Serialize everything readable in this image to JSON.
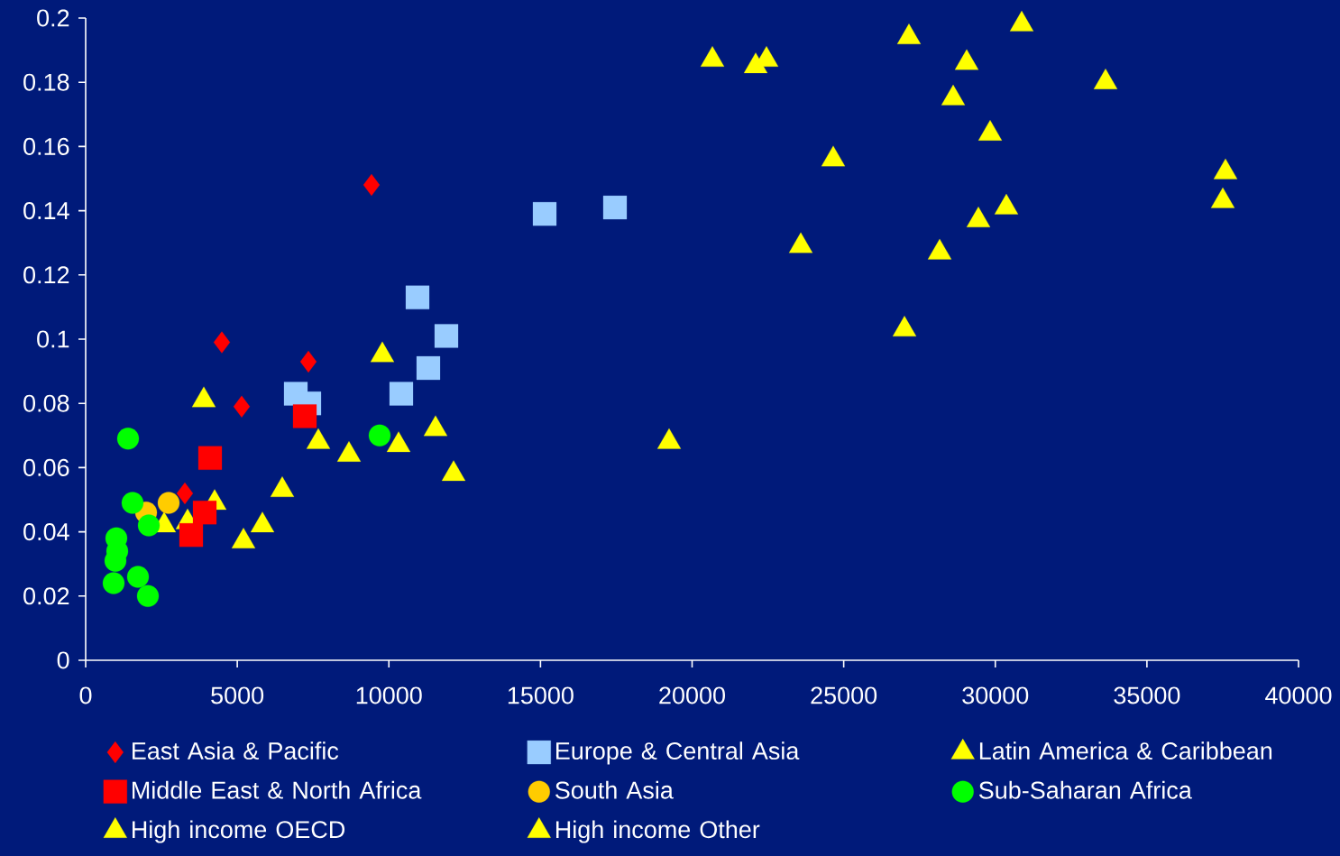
{
  "chart_data": {
    "type": "scatter",
    "xlim": [
      0,
      40000
    ],
    "xticks": [
      0,
      5000,
      10000,
      15000,
      20000,
      25000,
      30000,
      35000,
      40000
    ],
    "ylim": [
      0,
      0.2
    ],
    "yticks": [
      0,
      0.02,
      0.04,
      0.06,
      0.08,
      0.1,
      0.12,
      0.14,
      0.16,
      0.18,
      0.2
    ],
    "grid": false,
    "legend": "bottom",
    "series": [
      {
        "name": "East Asia & Pacific",
        "color": "#ff0000",
        "marker": "diamond",
        "x": [
          9427,
          4491,
          7346,
          5145,
          3271
        ],
        "values": [
          0.148,
          0.099,
          0.093,
          0.079,
          0.052
        ]
      },
      {
        "name": "Europe & Central Asia",
        "color": "#99ccff",
        "marker": "square",
        "x": [
          15137,
          17457,
          10944,
          11896,
          11301,
          10409,
          6929,
          7375
        ],
        "values": [
          0.139,
          0.141,
          0.113,
          0.101,
          0.091,
          0.083,
          0.083,
          0.08
        ]
      },
      {
        "name": "Latin America & Caribbean",
        "color": "#ffff00",
        "marker": "triangle",
        "x": [
          9784,
          3896,
          7673,
          8684,
          10320,
          11539,
          12134,
          6483,
          5829,
          5204,
          4253,
          2587,
          3361
        ],
        "values": [
          0.095,
          0.081,
          0.068,
          0.064,
          0.067,
          0.072,
          0.058,
          0.053,
          0.042,
          0.037,
          0.049,
          0.042,
          0.043
        ]
      },
      {
        "name": "Middle East & North Africa",
        "color": "#ff0000",
        "marker": "square",
        "x": [
          4104,
          7227,
          3926,
          3480
        ],
        "values": [
          0.063,
          0.076,
          0.046,
          0.039
        ]
      },
      {
        "name": "South Asia",
        "color": "#ffcc00",
        "marker": "circle",
        "x": [
          2736,
          1993
        ],
        "values": [
          0.049,
          0.046
        ]
      },
      {
        "name": "Sub-Saharan Africa",
        "color": "#00ff00",
        "marker": "circle",
        "x": [
          1398,
          1546,
          2082,
          1011,
          1041,
          981,
          922,
          1725,
          2052,
          9695
        ],
        "values": [
          0.069,
          0.049,
          0.042,
          0.038,
          0.034,
          0.031,
          0.024,
          0.026,
          0.02,
          0.07
        ]
      },
      {
        "name": "High income OECD",
        "color": "#ffff00",
        "marker": "triangle",
        "x": [
          20669,
          22097,
          22453,
          27152,
          30870,
          29056,
          28610,
          33636,
          29829,
          24654,
          37591,
          37502,
          30364,
          29442,
          23584,
          28164,
          27004,
          19242
        ],
        "values": [
          0.187,
          0.185,
          0.187,
          0.194,
          0.198,
          0.186,
          0.175,
          0.18,
          0.164,
          0.156,
          0.152,
          0.143,
          0.141,
          0.137,
          0.129,
          0.127,
          0.103,
          0.068
        ]
      },
      {
        "name": "High income Other",
        "color": "#ffff00",
        "marker": "triangle"
      }
    ]
  }
}
